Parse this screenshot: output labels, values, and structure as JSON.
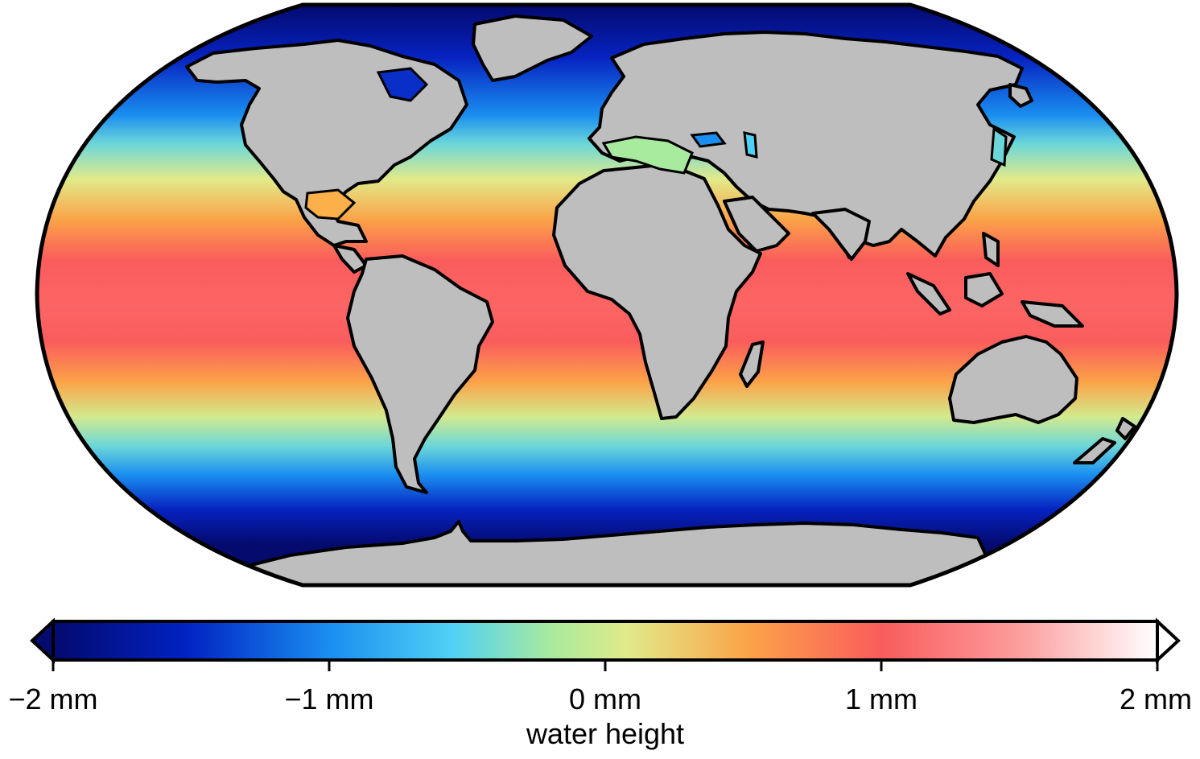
{
  "map": {
    "projection": "Robinson",
    "field": "water height",
    "land_color": "#bebebe",
    "coastline_color": "#000000"
  },
  "colorbar": {
    "label": "water height",
    "range": [
      -2,
      2
    ],
    "ticks": [
      {
        "value": -2,
        "label": "−2 mm"
      },
      {
        "value": -1,
        "label": "−1 mm"
      },
      {
        "value": 0,
        "label": "0 mm"
      },
      {
        "value": 1,
        "label": "1 mm"
      },
      {
        "value": 2,
        "label": "2 mm"
      }
    ],
    "colormap": [
      "#040a6e",
      "#0022c2",
      "#1a8ef0",
      "#4fd0f5",
      "#a8ea9e",
      "#e1ea8a",
      "#fba348",
      "#fa5c5c",
      "#fc9a9a",
      "#ffffff"
    ],
    "extend_low": "#040a6e",
    "extend_high": "#ffffff"
  }
}
